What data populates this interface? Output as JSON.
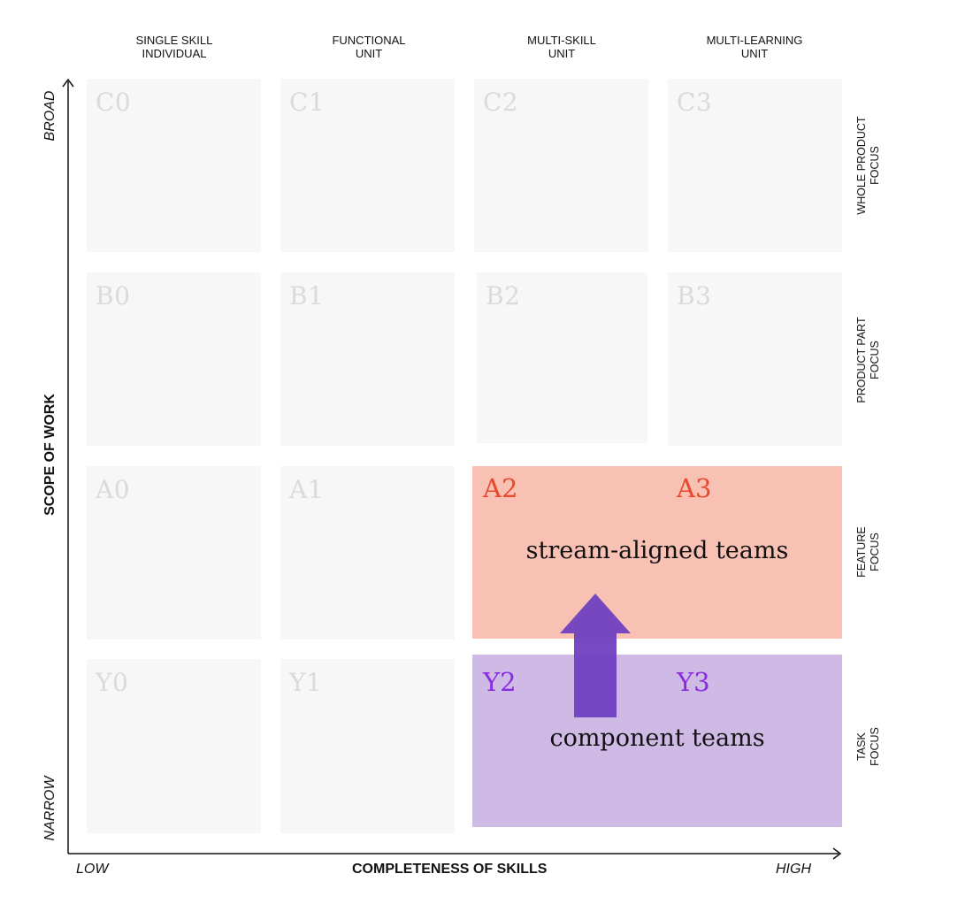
{
  "columns": [
    {
      "label": "SINGLE SKILL\nINDIVIDUAL"
    },
    {
      "label": "FUNCTIONAL\nUNIT"
    },
    {
      "label": "MULTI-SKILL\nUNIT"
    },
    {
      "label": "MULTI-LEARNING\nUNIT"
    }
  ],
  "rows": [
    {
      "label": "WHOLE PRODUCT\nFOCUS"
    },
    {
      "label": "PRODUCT PART\nFOCUS"
    },
    {
      "label": "FEATURE\nFOCUS"
    },
    {
      "label": "TASK\nFOCUS"
    }
  ],
  "cells": {
    "c0": "C0",
    "c1": "C1",
    "c2": "C2",
    "c3": "C3",
    "b0": "B0",
    "b1": "B1",
    "b2": "B2",
    "b3": "B3",
    "a0": "A0",
    "a1": "A1",
    "a2": "A2",
    "a3": "A3",
    "y0": "Y0",
    "y1": "Y1",
    "y2": "Y2",
    "y3": "Y3"
  },
  "bands": {
    "stream_aligned": "stream-aligned teams",
    "component": "component teams"
  },
  "axes": {
    "x_title": "COMPLETENESS OF SKILLS",
    "x_low": "LOW",
    "x_high": "HIGH",
    "y_title": "SCOPE OF WORK",
    "y_low": "NARROW",
    "y_high": "BROAD"
  },
  "colors": {
    "stream_band": "#f4a08c",
    "component_band": "#b89ada",
    "stream_label": "#e8492c",
    "component_label": "#8a2be2",
    "arrow": "#7040c0",
    "cell_background": "#f7f7f7",
    "cell_label": "#dadada"
  }
}
